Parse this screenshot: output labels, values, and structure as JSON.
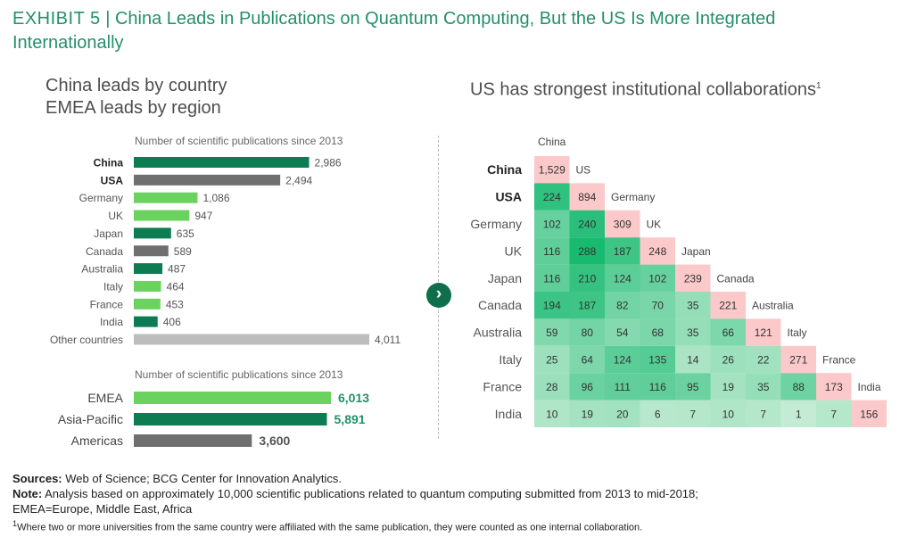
{
  "exhibit": {
    "number": "EXHIBIT 5",
    "separator": "|",
    "title": "China Leads in Publications on Quantum Computing, But the US Is More Integrated Internationally"
  },
  "left": {
    "title_line1": "China leads by country",
    "title_line2": "EMEA leads by region"
  },
  "right": {
    "title": "US has strongest institutional collaborations",
    "title_sup": "1"
  },
  "colors": {
    "dark_green": "#0e7c52",
    "light_green": "#6bd15f",
    "dark_gray": "#6f6f6f",
    "light_gray": "#bdbdbd",
    "diagonal_pink": "#fbc9c9",
    "accent_green": "#23906a"
  },
  "chart_data": [
    {
      "type": "bar",
      "orientation": "horizontal",
      "xlabel": "Number of scientific publications since 2013",
      "categories": [
        "China",
        "USA",
        "Germany",
        "UK",
        "Japan",
        "Canada",
        "Australia",
        "Italy",
        "France",
        "India",
        "Other countries"
      ],
      "values": [
        2986,
        2494,
        1086,
        947,
        635,
        589,
        487,
        464,
        453,
        406,
        4011
      ],
      "value_labels": [
        "2,986",
        "2,494",
        "1,086",
        "947",
        "635",
        "589",
        "487",
        "464",
        "453",
        "406",
        "4,011"
      ],
      "bold_categories": [
        "China",
        "USA"
      ],
      "bar_colors": [
        "dark_green",
        "dark_gray",
        "light_green",
        "light_green",
        "dark_green",
        "dark_gray",
        "dark_green",
        "light_green",
        "light_green",
        "dark_green",
        "light_gray"
      ]
    },
    {
      "type": "bar",
      "orientation": "horizontal",
      "xlabel": "Number of scientific publications since 2013",
      "categories": [
        "EMEA",
        "Asia-Pacific",
        "Americas"
      ],
      "values": [
        6013,
        5891,
        3600
      ],
      "value_labels": [
        "6,013",
        "5,891",
        "3,600"
      ],
      "bar_colors": [
        "light_green",
        "dark_green",
        "dark_gray"
      ]
    },
    {
      "type": "heatmap",
      "shape": "lower-triangular",
      "rows": [
        "China",
        "USA",
        "Germany",
        "UK",
        "Japan",
        "Canada",
        "Australia",
        "Italy",
        "France",
        "India"
      ],
      "columns": [
        "China",
        "US",
        "Germany",
        "UK",
        "Japan",
        "Canada",
        "Australia",
        "Italy",
        "France",
        "India"
      ],
      "bold_rows": [
        "China",
        "USA"
      ],
      "values": [
        [
          1529
        ],
        [
          224,
          894
        ],
        [
          102,
          240,
          309
        ],
        [
          116,
          288,
          187,
          248
        ],
        [
          116,
          210,
          124,
          102,
          239
        ],
        [
          194,
          187,
          82,
          70,
          35,
          221
        ],
        [
          59,
          80,
          54,
          68,
          35,
          66,
          121
        ],
        [
          25,
          64,
          124,
          135,
          14,
          26,
          22,
          271
        ],
        [
          28,
          96,
          111,
          116,
          95,
          19,
          35,
          88,
          173
        ],
        [
          10,
          19,
          20,
          6,
          7,
          10,
          7,
          1,
          7,
          156
        ]
      ],
      "value_labels": [
        [
          "1,529"
        ],
        [
          "224",
          "894"
        ],
        [
          "102",
          "240",
          "309"
        ],
        [
          "116",
          "288",
          "187",
          "248"
        ],
        [
          "116",
          "210",
          "124",
          "102",
          "239"
        ],
        [
          "194",
          "187",
          "82",
          "70",
          "35",
          "221"
        ],
        [
          "59",
          "80",
          "54",
          "68",
          "35",
          "66",
          "121"
        ],
        [
          "25",
          "64",
          "124",
          "135",
          "14",
          "26",
          "22",
          "271"
        ],
        [
          "28",
          "96",
          "111",
          "116",
          "95",
          "19",
          "35",
          "88",
          "173"
        ],
        [
          "10",
          "19",
          "20",
          "6",
          "7",
          "10",
          "7",
          "1",
          "7",
          "156"
        ]
      ]
    }
  ],
  "notes": {
    "sources_label": "Sources:",
    "sources_text": "Web of Science; BCG Center for Innovation Analytics.",
    "note_label": "Note:",
    "note_text": "Analysis based on approximately 10,000 scientific publications related to quantum computing submitted from 2013 to mid-2018;",
    "note_text2": "EMEA=Europe, Middle East, Africa",
    "footnote_mark": "1",
    "footnote_text": "Where two or more universities from the same country were affiliated with the same publication, they were counted as one internal collaboration."
  }
}
